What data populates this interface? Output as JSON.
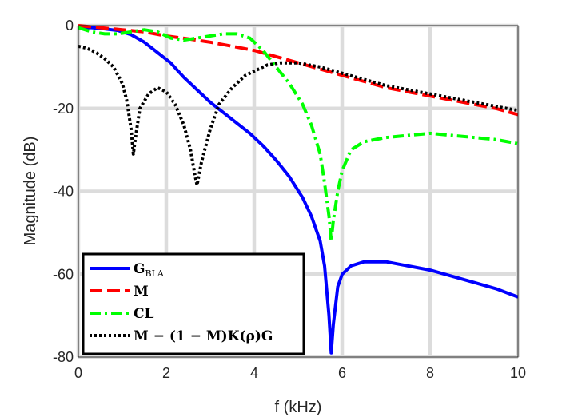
{
  "chart_data": {
    "type": "line",
    "xlabel": "f (kHz)",
    "ylabel": "Magnitude (dB)",
    "xlim": [
      0,
      10
    ],
    "ylim": [
      -80,
      0
    ],
    "xticks": [
      0,
      2,
      4,
      6,
      8,
      10
    ],
    "yticks": [
      0,
      -20,
      -40,
      -60,
      -80
    ],
    "grid": true,
    "legend_position": "bottom-left",
    "series": [
      {
        "name": "G_BLA",
        "legend_main": "G",
        "legend_sub": "BLA",
        "color": "#0000ff",
        "style": "solid",
        "x": [
          0,
          0.3,
          0.6,
          0.9,
          1.2,
          1.5,
          1.8,
          2.1,
          2.4,
          2.7,
          3.0,
          3.3,
          3.6,
          3.9,
          4.2,
          4.5,
          4.8,
          5.1,
          5.3,
          5.5,
          5.6,
          5.7,
          5.75,
          5.8,
          5.9,
          6.0,
          6.2,
          6.5,
          7.0,
          7.5,
          8.0,
          8.5,
          9.0,
          9.5,
          10.0
        ],
        "y": [
          -0.5,
          -0.5,
          -0.8,
          -1.2,
          -2.2,
          -4,
          -6.5,
          -9,
          -12.5,
          -15.5,
          -18.5,
          -21,
          -23.5,
          -26,
          -29,
          -32.5,
          -36.5,
          -41.5,
          -46,
          -52,
          -58,
          -70,
          -79,
          -72,
          -63,
          -60,
          -58,
          -57,
          -57,
          -58,
          -59,
          -60.5,
          -62,
          -63.5,
          -65.5
        ]
      },
      {
        "name": "M",
        "legend_main": "M",
        "color": "#ff0000",
        "style": "dashed",
        "x": [
          0,
          0.5,
          1.0,
          1.5,
          2.0,
          2.5,
          3.0,
          3.5,
          4.0,
          4.5,
          5.0,
          5.5,
          6.0,
          6.5,
          7.0,
          7.5,
          8.0,
          8.5,
          9.0,
          9.5,
          10.0
        ],
        "y": [
          0,
          -0.5,
          -1,
          -1.5,
          -2.5,
          -3.2,
          -4,
          -5,
          -6,
          -7.5,
          -9,
          -10.5,
          -12,
          -13.5,
          -15,
          -16,
          -17,
          -18,
          -19,
          -20,
          -21.5
        ]
      },
      {
        "name": "CL",
        "legend_main": "CL",
        "color": "#00ff00",
        "style": "dashdot",
        "x": [
          0,
          0.3,
          0.6,
          0.9,
          1.2,
          1.5,
          1.8,
          2.1,
          2.4,
          2.7,
          3.0,
          3.3,
          3.6,
          3.9,
          4.2,
          4.5,
          4.8,
          5.1,
          5.3,
          5.5,
          5.6,
          5.7,
          5.75,
          5.8,
          5.9,
          6.0,
          6.2,
          6.5,
          7.0,
          7.5,
          8.0,
          8.5,
          9.0,
          9.5,
          10.0
        ],
        "y": [
          -0.5,
          -1.5,
          -2,
          -2,
          -1.5,
          -1,
          -1.5,
          -3,
          -3.5,
          -3,
          -2.5,
          -2,
          -2,
          -3,
          -6,
          -10,
          -14,
          -19,
          -24,
          -31,
          -38,
          -46,
          -52,
          -47,
          -40,
          -35,
          -30,
          -28,
          -27,
          -26.5,
          -26,
          -26.5,
          -27,
          -27.5,
          -28.5
        ]
      },
      {
        "name": "M − (1 − M)K(ρ)G",
        "legend_main": "M − (1 − M)K(ρ)G",
        "color": "#000000",
        "style": "dotted",
        "x": [
          0,
          0.2,
          0.4,
          0.6,
          0.8,
          1.0,
          1.1,
          1.2,
          1.25,
          1.3,
          1.4,
          1.6,
          1.8,
          2.0,
          2.2,
          2.4,
          2.55,
          2.65,
          2.7,
          2.8,
          3.0,
          3.2,
          3.5,
          3.8,
          4.0,
          4.3,
          4.6,
          5.0,
          5.5,
          6.0,
          6.5,
          7.0,
          7.5,
          8.0,
          8.5,
          9.0,
          9.5,
          10.0
        ],
        "y": [
          -5,
          -5.5,
          -6.5,
          -8,
          -10,
          -14,
          -18,
          -25,
          -31,
          -27,
          -20,
          -16.5,
          -15,
          -16,
          -19,
          -24,
          -30,
          -36,
          -38.5,
          -33,
          -25,
          -19,
          -15,
          -12,
          -11,
          -9.5,
          -9,
          -9,
          -10,
          -11.5,
          -13,
          -14.5,
          -15.5,
          -16.5,
          -17.5,
          -18.5,
          -19.5,
          -20.5
        ]
      }
    ]
  }
}
